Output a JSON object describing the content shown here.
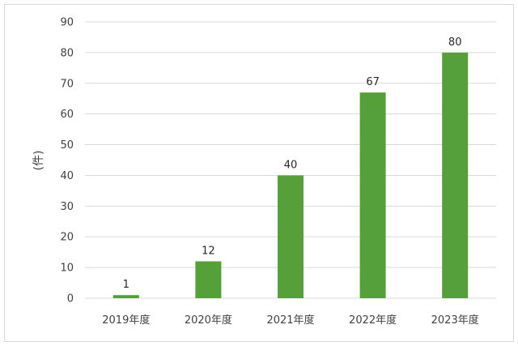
{
  "chart_data": {
    "type": "bar",
    "title": "",
    "xlabel": "",
    "ylabel": "(件)",
    "categories": [
      "2019年度",
      "2020年度",
      "2021年度",
      "2022年度",
      "2023年度"
    ],
    "values": [
      1,
      12,
      40,
      67,
      80
    ],
    "ylim": [
      0,
      90
    ],
    "yticks": [
      0,
      10,
      20,
      30,
      40,
      50,
      60,
      70,
      80,
      90
    ],
    "grid": true,
    "legend": "none",
    "data_labels": true,
    "bar_color": "#56a03a",
    "grid_color": "#d9d9d9"
  }
}
